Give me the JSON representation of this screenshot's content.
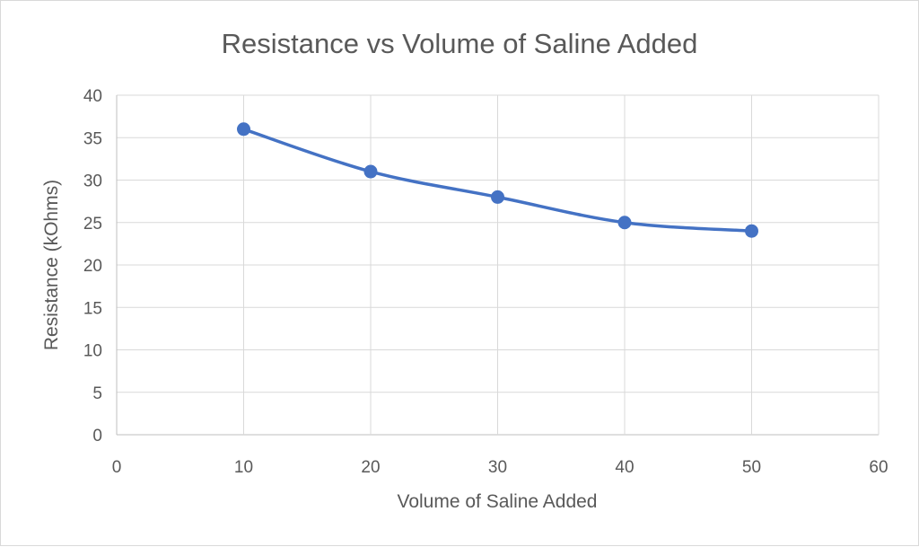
{
  "chart_data": {
    "type": "scatter",
    "title": "Resistance vs Volume of Saline Added",
    "xlabel": "Volume of Saline Added",
    "ylabel": "Resistance (kOhms)",
    "xlim": [
      0,
      60
    ],
    "ylim": [
      0,
      40
    ],
    "xticks": [
      0,
      10,
      20,
      30,
      40,
      50,
      60
    ],
    "yticks": [
      0,
      5,
      10,
      15,
      20,
      25,
      30,
      35,
      40
    ],
    "grid": true,
    "smooth_line": true,
    "series": [
      {
        "color": "#4472c4",
        "x": [
          10,
          20,
          30,
          40,
          50
        ],
        "y": [
          36,
          31,
          28,
          25,
          24
        ]
      }
    ]
  }
}
